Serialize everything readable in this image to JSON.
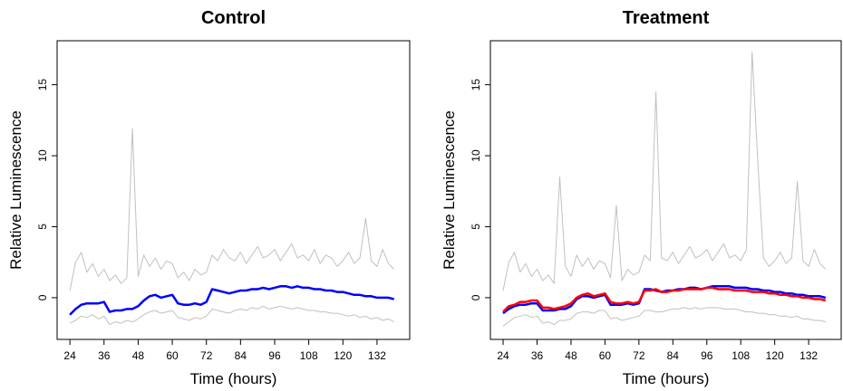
{
  "chart_data": [
    {
      "type": "line",
      "title": "Control",
      "xlabel": "Time (hours)",
      "ylabel": "Relative Luminescence",
      "xlim": [
        19.5,
        143.5
      ],
      "ylim": [
        -2.94,
        18.1
      ],
      "xticks": [
        24,
        36,
        48,
        60,
        72,
        84,
        96,
        108,
        120,
        132
      ],
      "yticks": [
        0,
        5,
        10,
        15
      ],
      "x": [
        24,
        26,
        28,
        30,
        32,
        34,
        36,
        38,
        40,
        42,
        44,
        46,
        48,
        50,
        52,
        54,
        56,
        58,
        60,
        62,
        64,
        66,
        68,
        70,
        72,
        74,
        76,
        78,
        80,
        82,
        84,
        86,
        88,
        90,
        92,
        94,
        96,
        98,
        100,
        102,
        104,
        106,
        108,
        110,
        112,
        114,
        116,
        118,
        120,
        122,
        124,
        126,
        128,
        130,
        132,
        134,
        136,
        138
      ],
      "series": [
        {
          "color": "#c0c0c0",
          "values": [
            0.5,
            2.5,
            3.2,
            1.8,
            2.4,
            1.5,
            2.0,
            1.2,
            1.6,
            1.0,
            1.4,
            11.9,
            1.5,
            3.0,
            2.2,
            2.8,
            2.0,
            2.6,
            2.4,
            1.4,
            1.8,
            1.2,
            2.0,
            1.6,
            1.8,
            3.0,
            2.6,
            3.4,
            2.8,
            2.6,
            3.2,
            2.4,
            3.0,
            3.6,
            2.8,
            3.0,
            3.4,
            2.6,
            3.2,
            3.8,
            2.8,
            3.0,
            2.6,
            3.4,
            2.4,
            3.0,
            2.8,
            2.2,
            2.6,
            3.2,
            2.4,
            2.8,
            5.6,
            2.6,
            2.2,
            3.4,
            2.4,
            2.0
          ]
        },
        {
          "color": "#c0c0c0",
          "values": [
            -1.8,
            -1.6,
            -1.3,
            -1.4,
            -1.2,
            -1.5,
            -1.3,
            -1.9,
            -1.7,
            -1.8,
            -1.6,
            -1.7,
            -1.5,
            -1.2,
            -1.0,
            -0.9,
            -1.1,
            -1.0,
            -0.9,
            -1.4,
            -1.5,
            -1.6,
            -1.4,
            -1.5,
            -1.3,
            -0.8,
            -0.9,
            -1.0,
            -1.1,
            -0.9,
            -0.8,
            -0.9,
            -0.7,
            -0.8,
            -0.6,
            -0.8,
            -0.7,
            -0.6,
            -0.7,
            -0.8,
            -0.7,
            -0.8,
            -0.9,
            -0.9,
            -1.0,
            -1.0,
            -1.1,
            -1.1,
            -1.2,
            -1.3,
            -1.2,
            -1.4,
            -1.3,
            -1.5,
            -1.4,
            -1.6,
            -1.5,
            -1.7
          ]
        },
        {
          "color": "#0000ff",
          "values": [
            -1.2,
            -0.8,
            -0.5,
            -0.4,
            -0.4,
            -0.4,
            -0.3,
            -1.0,
            -0.9,
            -0.9,
            -0.8,
            -0.8,
            -0.6,
            -0.2,
            0.1,
            0.2,
            0.0,
            0.1,
            0.2,
            -0.4,
            -0.5,
            -0.5,
            -0.4,
            -0.5,
            -0.3,
            0.6,
            0.5,
            0.4,
            0.3,
            0.4,
            0.5,
            0.5,
            0.6,
            0.6,
            0.7,
            0.6,
            0.7,
            0.8,
            0.8,
            0.7,
            0.8,
            0.7,
            0.7,
            0.6,
            0.6,
            0.5,
            0.5,
            0.4,
            0.4,
            0.3,
            0.2,
            0.2,
            0.1,
            0.1,
            0.0,
            0.0,
            0.0,
            -0.1
          ]
        }
      ]
    },
    {
      "type": "line",
      "title": "Treatment",
      "xlabel": "Time (hours)",
      "ylabel": "Relative Luminescence",
      "xlim": [
        19.5,
        143.5
      ],
      "ylim": [
        -2.94,
        18.1
      ],
      "xticks": [
        24,
        36,
        48,
        60,
        72,
        84,
        96,
        108,
        120,
        132
      ],
      "yticks": [
        0,
        5,
        10,
        15
      ],
      "x": [
        24,
        26,
        28,
        30,
        32,
        34,
        36,
        38,
        40,
        42,
        44,
        46,
        48,
        50,
        52,
        54,
        56,
        58,
        60,
        62,
        64,
        66,
        68,
        70,
        72,
        74,
        76,
        78,
        80,
        82,
        84,
        86,
        88,
        90,
        92,
        94,
        96,
        98,
        100,
        102,
        104,
        106,
        108,
        110,
        112,
        114,
        116,
        118,
        120,
        122,
        124,
        126,
        128,
        130,
        132,
        134,
        136,
        138
      ],
      "series": [
        {
          "color": "#c0c0c0",
          "values": [
            0.5,
            2.5,
            3.2,
            1.8,
            2.4,
            1.5,
            2.0,
            1.2,
            1.6,
            1.0,
            8.5,
            2.2,
            1.5,
            3.0,
            2.2,
            2.8,
            2.0,
            2.6,
            2.4,
            1.4,
            6.5,
            1.2,
            2.0,
            1.6,
            1.8,
            3.0,
            2.6,
            14.5,
            2.8,
            2.6,
            3.2,
            2.4,
            3.0,
            3.6,
            2.8,
            3.0,
            3.4,
            2.6,
            3.2,
            3.8,
            2.8,
            3.0,
            2.6,
            3.4,
            17.3,
            9.7,
            2.8,
            2.2,
            2.6,
            3.2,
            2.4,
            2.8,
            8.2,
            2.6,
            2.2,
            3.4,
            2.4,
            2.0
          ]
        },
        {
          "color": "#c0c0c0",
          "values": [
            -2.0,
            -1.7,
            -1.4,
            -1.3,
            -1.2,
            -1.4,
            -1.3,
            -1.8,
            -1.7,
            -1.9,
            -1.6,
            -1.6,
            -1.5,
            -1.1,
            -1.0,
            -1.0,
            -1.1,
            -0.9,
            -0.9,
            -1.5,
            -1.4,
            -1.6,
            -1.5,
            -1.4,
            -1.3,
            -0.9,
            -0.9,
            -1.0,
            -1.0,
            -0.9,
            -0.8,
            -0.8,
            -0.7,
            -0.8,
            -0.7,
            -0.8,
            -0.7,
            -0.7,
            -0.7,
            -0.8,
            -0.8,
            -0.8,
            -0.9,
            -1.0,
            -1.0,
            -1.1,
            -1.1,
            -1.2,
            -1.2,
            -1.3,
            -1.3,
            -1.4,
            -1.3,
            -1.5,
            -1.5,
            -1.6,
            -1.6,
            -1.7
          ]
        },
        {
          "color": "#0000ff",
          "values": [
            -1.1,
            -0.8,
            -0.6,
            -0.5,
            -0.5,
            -0.4,
            -0.4,
            -0.9,
            -0.9,
            -0.9,
            -0.8,
            -0.8,
            -0.6,
            -0.1,
            0.1,
            0.1,
            0.0,
            0.1,
            0.2,
            -0.5,
            -0.5,
            -0.5,
            -0.4,
            -0.5,
            -0.4,
            0.6,
            0.6,
            0.5,
            0.4,
            0.5,
            0.5,
            0.6,
            0.6,
            0.7,
            0.7,
            0.6,
            0.7,
            0.8,
            0.8,
            0.8,
            0.8,
            0.7,
            0.7,
            0.7,
            0.6,
            0.6,
            0.5,
            0.5,
            0.4,
            0.4,
            0.3,
            0.3,
            0.2,
            0.2,
            0.1,
            0.1,
            0.1,
            0.0
          ]
        },
        {
          "color": "#ff0000",
          "values": [
            -1.0,
            -0.6,
            -0.5,
            -0.3,
            -0.3,
            -0.2,
            -0.2,
            -0.7,
            -0.7,
            -0.8,
            -0.7,
            -0.6,
            -0.4,
            0.0,
            0.2,
            0.3,
            0.1,
            0.2,
            0.3,
            -0.3,
            -0.4,
            -0.4,
            -0.3,
            -0.4,
            -0.3,
            0.5,
            0.5,
            0.6,
            0.4,
            0.4,
            0.5,
            0.5,
            0.6,
            0.6,
            0.6,
            0.6,
            0.7,
            0.7,
            0.6,
            0.6,
            0.6,
            0.5,
            0.5,
            0.5,
            0.4,
            0.4,
            0.4,
            0.3,
            0.3,
            0.2,
            0.2,
            0.1,
            0.1,
            0.0,
            0.0,
            -0.1,
            -0.1,
            -0.2
          ]
        }
      ]
    }
  ]
}
